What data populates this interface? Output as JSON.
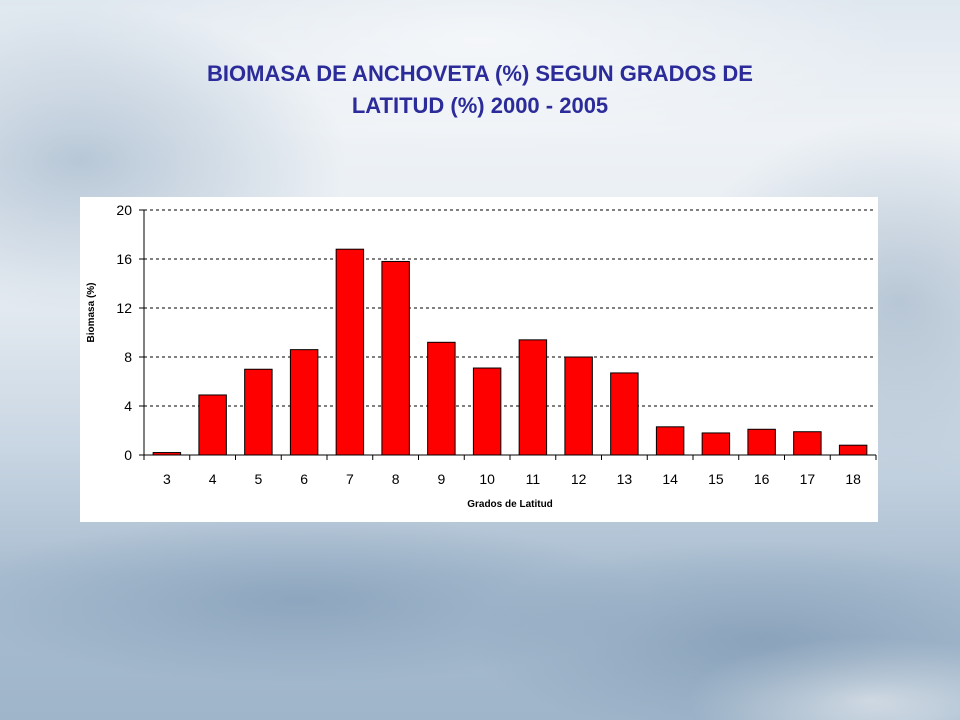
{
  "slide": {
    "title_line1": "BIOMASA DE ANCHOVETA (%) SEGUN GRADOS DE",
    "title_line2": "LATITUD  (%) 2000 - 2005"
  },
  "colors": {
    "bar": "#ff0000",
    "bar_stroke": "#000000",
    "title": "#2b2b9a"
  },
  "chart_data": {
    "type": "bar",
    "title": "",
    "xlabel": "Grados de Latitud",
    "ylabel": "Biomasa (%)",
    "categories": [
      "3",
      "4",
      "5",
      "6",
      "7",
      "8",
      "9",
      "10",
      "11",
      "12",
      "13",
      "14",
      "15",
      "16",
      "17",
      "18"
    ],
    "values": [
      0.2,
      4.9,
      7.0,
      8.6,
      16.8,
      15.8,
      9.2,
      7.1,
      9.4,
      8.0,
      6.7,
      2.3,
      1.8,
      2.1,
      1.9,
      0.8
    ],
    "ylim": [
      0,
      20
    ],
    "yticks": [
      0,
      4,
      8,
      12,
      16,
      20
    ],
    "grid": true,
    "legend": "none"
  }
}
